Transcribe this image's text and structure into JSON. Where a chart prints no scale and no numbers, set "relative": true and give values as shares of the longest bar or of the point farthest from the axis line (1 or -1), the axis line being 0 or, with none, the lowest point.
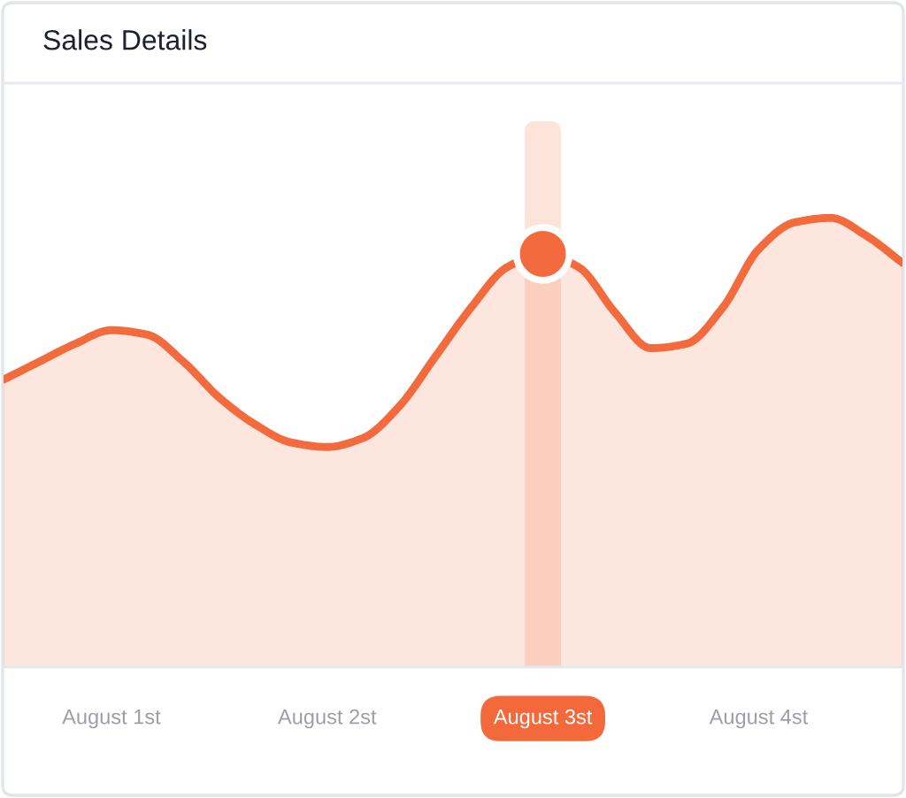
{
  "chart_data": {
    "type": "area",
    "title": "Sales Details",
    "relative": true,
    "categories": [
      null,
      null,
      null,
      "August 1st",
      null,
      null,
      null,
      null,
      null,
      "August 2st",
      null,
      null,
      null,
      null,
      null,
      "August 3st",
      null,
      null,
      null,
      null,
      null,
      "August 4st",
      null,
      null,
      null,
      null
    ],
    "series": [
      {
        "color": "#f36b3d",
        "values": [
          0.64,
          0.68,
          0.72,
          0.75,
          0.74,
          0.68,
          0.6,
          0.54,
          0.5,
          0.49,
          0.51,
          0.58,
          0.69,
          0.8,
          0.89,
          0.92,
          0.89,
          0.79,
          0.71,
          0.72,
          0.8,
          0.93,
          0.99,
          1,
          0.96,
          0.9
        ]
      },
      {
        "type": "scatter",
        "color": "#f36b3d",
        "marker": "circle",
        "values": [
          null,
          null,
          null,
          null,
          null,
          null,
          null,
          null,
          null,
          null,
          null,
          null,
          null,
          null,
          null,
          0.92,
          null,
          null,
          null,
          null,
          null,
          null,
          null,
          null,
          null,
          null
        ]
      }
    ],
    "bands": [
      {
        "axis": "x",
        "from": "August 3st",
        "to": "August 3st",
        "color": "#fde3d9"
      }
    ]
  }
}
